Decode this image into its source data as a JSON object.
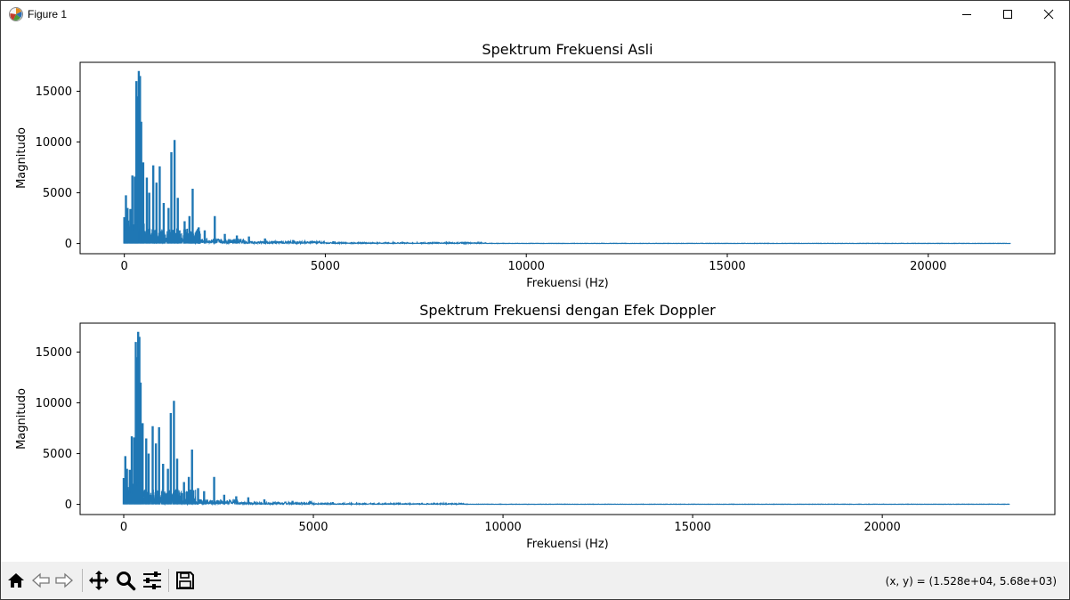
{
  "window": {
    "title": "Figure 1",
    "icons": {
      "app": "matplotlib-logo-icon",
      "minimize": "minimize-icon",
      "maximize": "maximize-icon",
      "close": "close-icon"
    }
  },
  "toolbar": {
    "tools": [
      {
        "name": "home-icon"
      },
      {
        "name": "back-arrow-icon"
      },
      {
        "name": "forward-arrow-icon"
      },
      {
        "name": "pan-icon"
      },
      {
        "name": "zoom-icon"
      },
      {
        "name": "configure-subplots-icon"
      },
      {
        "name": "save-icon"
      }
    ],
    "coords": "(x, y) = (1.528e+04, 5.68e+03)"
  },
  "colors": {
    "line": "#1f77b4",
    "toolbar_bg": "#f0f0f0"
  },
  "chart_data": [
    {
      "type": "line",
      "title": "Spektrum Frekuensi Asli",
      "xlabel": "Frekuensi (Hz)",
      "ylabel": "Magnitudo",
      "xlim": [
        -1100,
        23150
      ],
      "ylim": [
        -1000,
        17850
      ],
      "xticks": [
        0,
        5000,
        10000,
        15000,
        20000
      ],
      "yticks": [
        0,
        5000,
        10000,
        15000
      ],
      "x_max": 22050,
      "grid": false,
      "series": [
        {
          "peaks": [
            [
              0,
              2600
            ],
            [
              40,
              4750
            ],
            [
              80,
              3500
            ],
            [
              150,
              3400
            ],
            [
              200,
              6700
            ],
            [
              260,
              6600
            ],
            [
              300,
              16000
            ],
            [
              330,
              14500
            ],
            [
              360,
              17000
            ],
            [
              390,
              16500
            ],
            [
              420,
              12000
            ],
            [
              470,
              8000
            ],
            [
              560,
              6500
            ],
            [
              620,
              5000
            ],
            [
              720,
              7700
            ],
            [
              800,
              6000
            ],
            [
              880,
              7600
            ],
            [
              980,
              4000
            ],
            [
              1100,
              3500
            ],
            [
              1170,
              9000
            ],
            [
              1250,
              10200
            ],
            [
              1330,
              4500
            ],
            [
              1500,
              2200
            ],
            [
              1620,
              2700
            ],
            [
              1700,
              5400
            ],
            [
              1850,
              1600
            ],
            [
              2000,
              1300
            ],
            [
              2250,
              2700
            ],
            [
              2500,
              950
            ],
            [
              2800,
              800
            ],
            [
              3100,
              700
            ],
            [
              3500,
              500
            ],
            [
              4200,
              350
            ],
            [
              5200,
              230
            ],
            [
              6500,
              160
            ],
            [
              8200,
              90
            ]
          ]
        }
      ]
    },
    {
      "type": "line",
      "title": "Spektrum Frekuensi dengan Efek Doppler",
      "xlabel": "Frekuensi (Hz)",
      "ylabel": "Magnitudo",
      "xlim": [
        -1150,
        24550
      ],
      "ylim": [
        -1000,
        17850
      ],
      "xticks": [
        0,
        5000,
        10000,
        15000,
        20000
      ],
      "yticks": [
        0,
        5000,
        10000,
        15000
      ],
      "x_max": 23360,
      "grid": false,
      "series": [
        {
          "peaks": [
            [
              0,
              2600
            ],
            [
              42,
              4750
            ],
            [
              85,
              3500
            ],
            [
              160,
              3400
            ],
            [
              212,
              6700
            ],
            [
              275,
              6600
            ],
            [
              318,
              16000
            ],
            [
              350,
              14500
            ],
            [
              381,
              17000
            ],
            [
              413,
              16500
            ],
            [
              445,
              12000
            ],
            [
              498,
              8000
            ],
            [
              593,
              6500
            ],
            [
              657,
              5000
            ],
            [
              763,
              7700
            ],
            [
              848,
              6000
            ],
            [
              932,
              7600
            ],
            [
              1038,
              4000
            ],
            [
              1165,
              3500
            ],
            [
              1240,
              9000
            ],
            [
              1324,
              10200
            ],
            [
              1409,
              4500
            ],
            [
              1589,
              2200
            ],
            [
              1716,
              2700
            ],
            [
              1801,
              5400
            ],
            [
              1960,
              1600
            ],
            [
              2119,
              1300
            ],
            [
              2384,
              2700
            ],
            [
              2649,
              950
            ],
            [
              2966,
              800
            ],
            [
              3284,
              700
            ],
            [
              3708,
              500
            ],
            [
              4450,
              350
            ],
            [
              5509,
              230
            ],
            [
              6886,
              160
            ],
            [
              8687,
              90
            ]
          ]
        }
      ]
    }
  ]
}
